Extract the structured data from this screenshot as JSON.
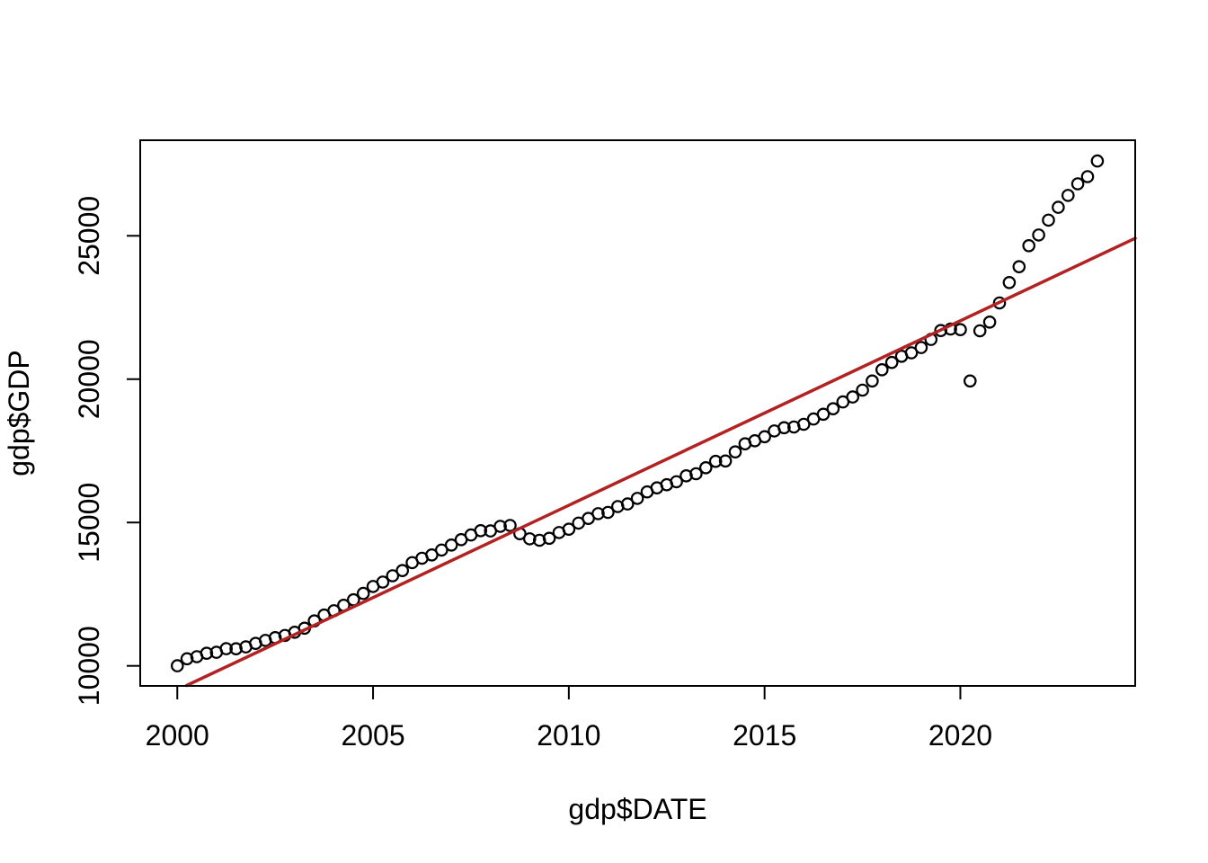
{
  "figure": {
    "background": "#ffffff",
    "foreground": "#000000"
  },
  "chart_data": {
    "type": "scatter",
    "title": "",
    "xlabel": "gdp$DATE",
    "ylabel": "gdp$GDP",
    "grid": false,
    "legend": null,
    "xlim": [
      1999.053,
      2024.466
    ],
    "ylim": [
      9301,
      28333
    ],
    "x_ticks": [
      {
        "value": 2000,
        "label": "2000"
      },
      {
        "value": 2005,
        "label": "2005"
      },
      {
        "value": 2010,
        "label": "2010"
      },
      {
        "value": 2015,
        "label": "2015"
      },
      {
        "value": 2020,
        "label": "2020"
      }
    ],
    "y_ticks": [
      {
        "value": 10000,
        "label": "10000"
      },
      {
        "value": 15000,
        "label": "15000"
      },
      {
        "value": 20000,
        "label": "20000"
      },
      {
        "value": 25000,
        "label": "25000"
      }
    ],
    "series": [
      {
        "name": "GDP",
        "marker": "open-circle",
        "color": "#000000",
        "points": [
          [
            2000.0,
            10002.8
          ],
          [
            2000.25,
            10247.7
          ],
          [
            2000.5,
            10319.8
          ],
          [
            2000.75,
            10439.0
          ],
          [
            2001.0,
            10472.9
          ],
          [
            2001.25,
            10597.8
          ],
          [
            2001.5,
            10596.3
          ],
          [
            2001.75,
            10660.5
          ],
          [
            2002.0,
            10783.5
          ],
          [
            2002.25,
            10887.4
          ],
          [
            2002.5,
            10984.0
          ],
          [
            2002.75,
            11061.4
          ],
          [
            2003.0,
            11174.1
          ],
          [
            2003.25,
            11312.8
          ],
          [
            2003.5,
            11566.7
          ],
          [
            2003.75,
            11772.2
          ],
          [
            2004.0,
            11923.4
          ],
          [
            2004.25,
            12112.8
          ],
          [
            2004.5,
            12305.3
          ],
          [
            2004.75,
            12527.2
          ],
          [
            2005.0,
            12767.3
          ],
          [
            2005.25,
            12922.7
          ],
          [
            2005.5,
            13142.6
          ],
          [
            2005.75,
            13324.2
          ],
          [
            2006.0,
            13599.2
          ],
          [
            2006.25,
            13753.4
          ],
          [
            2006.5,
            13870.2
          ],
          [
            2006.75,
            14039.6
          ],
          [
            2007.0,
            14215.7
          ],
          [
            2007.25,
            14402.1
          ],
          [
            2007.5,
            14564.1
          ],
          [
            2007.75,
            14715.1
          ],
          [
            2008.0,
            14706.5
          ],
          [
            2008.25,
            14865.7
          ],
          [
            2008.5,
            14898.5
          ],
          [
            2008.75,
            14608.2
          ],
          [
            2009.0,
            14430.9
          ],
          [
            2009.25,
            14381.2
          ],
          [
            2009.5,
            14448.9
          ],
          [
            2009.75,
            14651.2
          ],
          [
            2010.0,
            14764.6
          ],
          [
            2010.25,
            14980.2
          ],
          [
            2010.5,
            15141.6
          ],
          [
            2010.75,
            15309.5
          ],
          [
            2011.0,
            15351.4
          ],
          [
            2011.25,
            15557.5
          ],
          [
            2011.5,
            15647.7
          ],
          [
            2011.75,
            15842.3
          ],
          [
            2012.0,
            16068.8
          ],
          [
            2012.25,
            16207.1
          ],
          [
            2012.5,
            16319.5
          ],
          [
            2012.75,
            16420.4
          ],
          [
            2013.0,
            16629.1
          ],
          [
            2013.25,
            16699.6
          ],
          [
            2013.5,
            16911.1
          ],
          [
            2013.75,
            17133.1
          ],
          [
            2014.0,
            17144.3
          ],
          [
            2014.25,
            17462.7
          ],
          [
            2014.5,
            17743.2
          ],
          [
            2014.75,
            17852.5
          ],
          [
            2015.0,
            17991.3
          ],
          [
            2015.25,
            18193.7
          ],
          [
            2015.5,
            18306.9
          ],
          [
            2015.75,
            18332.1
          ],
          [
            2016.0,
            18425.3
          ],
          [
            2016.25,
            18611.6
          ],
          [
            2016.5,
            18775.5
          ],
          [
            2016.75,
            18968.0
          ],
          [
            2017.0,
            19204.9
          ],
          [
            2017.25,
            19379.2
          ],
          [
            2017.5,
            19617.3
          ],
          [
            2017.75,
            19937.0
          ],
          [
            2018.0,
            20328.6
          ],
          [
            2018.25,
            20580.9
          ],
          [
            2018.5,
            20798.7
          ],
          [
            2018.75,
            20917.9
          ],
          [
            2019.0,
            21104.1
          ],
          [
            2019.25,
            21384.8
          ],
          [
            2019.5,
            21694.5
          ],
          [
            2019.75,
            21747.4
          ],
          [
            2020.0,
            21727.7
          ],
          [
            2020.25,
            19935.4
          ],
          [
            2020.5,
            21684.6
          ],
          [
            2020.75,
            21990.2
          ],
          [
            2021.0,
            22656.8
          ],
          [
            2021.25,
            23368.9
          ],
          [
            2021.5,
            23921.9
          ],
          [
            2021.75,
            24654.6
          ],
          [
            2022.0,
            25029.1
          ],
          [
            2022.25,
            25544.3
          ],
          [
            2022.5,
            25994.6
          ],
          [
            2022.75,
            26408.4
          ],
          [
            2023.0,
            26813.8
          ],
          [
            2023.25,
            27063.0
          ],
          [
            2023.5,
            27610.1
          ]
        ]
      }
    ],
    "trend_line": {
      "name": "linear-regression",
      "color": "#B22222",
      "x1": 2000.24,
      "y1": 9316,
      "x2": 2024.466,
      "y2": 24913,
      "slope_per_year": 644,
      "value_at_2000": 9156
    }
  }
}
